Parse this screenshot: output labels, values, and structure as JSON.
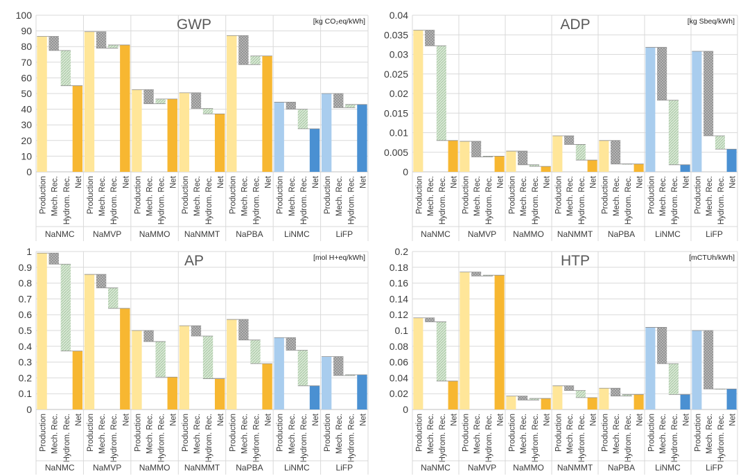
{
  "colors": {
    "na_production": "#ffe699",
    "na_net": "#f7b731",
    "li_production": "#a9cdee",
    "li_net": "#4a90d2",
    "mech_fill": "#bfbfbf",
    "hydro_fill": "#d2e5d0",
    "grid": "#d9d9d9",
    "axis_text": "#3a3a3a",
    "title_text": "#595959"
  },
  "chart_data": [
    {
      "type": "bar",
      "subtype": "waterfall",
      "title": "GWP",
      "unit": "[kg CO₂eq/kWh]",
      "ylim": [
        0,
        100
      ],
      "yticks": [
        0,
        10,
        20,
        30,
        40,
        50,
        60,
        70,
        80,
        90,
        100
      ],
      "step_labels": [
        "Production",
        "Mech. Rec.",
        "Hydrom. Rec.",
        "Net"
      ],
      "groups": [
        "NaNMC",
        "NaMVP",
        "NaMMO",
        "NaNMMT",
        "NaPBA",
        "LiNMC",
        "LiFP"
      ],
      "series": [
        {
          "name": "NaNMC",
          "values": [
            86.5,
            77.5,
            55.0,
            55.0
          ]
        },
        {
          "name": "NaMVP",
          "values": [
            89.5,
            79.0,
            81.0,
            81.0
          ]
        },
        {
          "name": "NaMMO",
          "values": [
            52.5,
            43.5,
            46.5,
            46.5
          ]
        },
        {
          "name": "NaNMMT",
          "values": [
            50.5,
            40.5,
            37.0,
            37.0
          ]
        },
        {
          "name": "NaPBA",
          "values": [
            87.0,
            68.5,
            74.0,
            74.0
          ]
        },
        {
          "name": "LiNMC",
          "values": [
            44.5,
            40.0,
            27.5,
            27.5
          ]
        },
        {
          "name": "LiFP",
          "values": [
            50.0,
            41.0,
            43.0,
            43.0
          ]
        }
      ]
    },
    {
      "type": "bar",
      "subtype": "waterfall",
      "title": "ADP",
      "unit": "[kg Sbeq/kWh]",
      "ylim": [
        0,
        0.04
      ],
      "yticks": [
        0,
        0.005,
        0.01,
        0.015,
        0.02,
        0.025,
        0.03,
        0.035,
        0.04
      ],
      "step_labels": [
        "Production",
        "Mech. Rec.",
        "Hydrom. Rec.",
        "Net"
      ],
      "groups": [
        "NaNMC",
        "NaMVP",
        "NaMMO",
        "NaNMMT",
        "NaPBA",
        "LiNMC",
        "LiFP"
      ],
      "series": [
        {
          "name": "NaNMC",
          "values": [
            0.0362,
            0.0322,
            0.008,
            0.008
          ]
        },
        {
          "name": "NaMVP",
          "values": [
            0.0078,
            0.0038,
            0.004,
            0.004
          ]
        },
        {
          "name": "NaMMO",
          "values": [
            0.0053,
            0.0018,
            0.0014,
            0.0014
          ]
        },
        {
          "name": "NaNMMT",
          "values": [
            0.0092,
            0.007,
            0.003,
            0.003
          ]
        },
        {
          "name": "NaPBA",
          "values": [
            0.008,
            0.002,
            0.002,
            0.002
          ]
        },
        {
          "name": "LiNMC",
          "values": [
            0.0318,
            0.0183,
            0.0018,
            0.0018
          ]
        },
        {
          "name": "LiFP",
          "values": [
            0.0308,
            0.0092,
            0.0058,
            0.0058
          ]
        }
      ]
    },
    {
      "type": "bar",
      "subtype": "waterfall",
      "title": "AP",
      "unit": "[mol H+eq/kWh]",
      "ylim": [
        0,
        1
      ],
      "yticks": [
        0,
        0.1,
        0.2,
        0.3,
        0.4,
        0.5,
        0.6,
        0.7,
        0.8,
        0.9,
        1
      ],
      "step_labels": [
        "Production",
        "Mech. Rec.",
        "Hydrom. Rec.",
        "Net"
      ],
      "groups": [
        "NaNMC",
        "NaMVP",
        "NaMMO",
        "NaNMMT",
        "NaPBA",
        "LiNMC",
        "LiFP"
      ],
      "series": [
        {
          "name": "NaNMC",
          "values": [
            0.99,
            0.92,
            0.37,
            0.37
          ]
        },
        {
          "name": "NaMVP",
          "values": [
            0.855,
            0.77,
            0.64,
            0.64
          ]
        },
        {
          "name": "NaMMO",
          "values": [
            0.5,
            0.43,
            0.205,
            0.205
          ]
        },
        {
          "name": "NaNMMT",
          "values": [
            0.53,
            0.465,
            0.195,
            0.195
          ]
        },
        {
          "name": "NaPBA",
          "values": [
            0.57,
            0.44,
            0.29,
            0.29
          ]
        },
        {
          "name": "LiNMC",
          "values": [
            0.455,
            0.375,
            0.15,
            0.15
          ]
        },
        {
          "name": "LiFP",
          "values": [
            0.335,
            0.215,
            0.22,
            0.22
          ]
        }
      ]
    },
    {
      "type": "bar",
      "subtype": "waterfall",
      "title": "HTP",
      "unit": "[mCTUh/kWh]",
      "ylim": [
        0,
        0.2
      ],
      "yticks": [
        0,
        0.02,
        0.04,
        0.06,
        0.08,
        0.1,
        0.12,
        0.14,
        0.16,
        0.18,
        0.2
      ],
      "step_labels": [
        "Production",
        "Mech. Rec.",
        "Hydrom. Rec.",
        "Net"
      ],
      "groups": [
        "NaNMC",
        "NaMVP",
        "NaMMO",
        "NaNMMT",
        "NaPBA",
        "LiNMC",
        "LiFP"
      ],
      "series": [
        {
          "name": "NaNMC",
          "values": [
            0.116,
            0.111,
            0.036,
            0.036
          ]
        },
        {
          "name": "NaMVP",
          "values": [
            0.174,
            0.169,
            0.17,
            0.17
          ]
        },
        {
          "name": "NaMMO",
          "values": [
            0.017,
            0.012,
            0.014,
            0.014
          ]
        },
        {
          "name": "NaNMMT",
          "values": [
            0.03,
            0.024,
            0.015,
            0.015
          ]
        },
        {
          "name": "NaPBA",
          "values": [
            0.027,
            0.017,
            0.019,
            0.019
          ]
        },
        {
          "name": "LiNMC",
          "values": [
            0.104,
            0.058,
            0.019,
            0.019
          ]
        },
        {
          "name": "LiFP",
          "values": [
            0.1,
            0.026,
            0.026,
            0.026
          ]
        }
      ]
    }
  ]
}
